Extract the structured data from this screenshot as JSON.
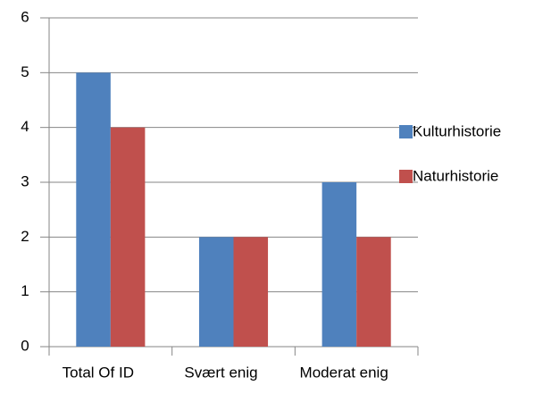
{
  "chart_data": {
    "type": "bar",
    "categories": [
      "Total Of ID",
      "Svært enig",
      "Moderat enig"
    ],
    "series": [
      {
        "name": "Kulturhistorie",
        "color": "#4f81bd",
        "values": [
          5,
          2,
          3
        ]
      },
      {
        "name": "Naturhistorie",
        "color": "#c0504d",
        "values": [
          4,
          2,
          2
        ]
      }
    ],
    "ylim": [
      0,
      6
    ],
    "yticks": [
      0,
      1,
      2,
      3,
      4,
      5,
      6
    ],
    "grid": true,
    "legend": "right"
  }
}
